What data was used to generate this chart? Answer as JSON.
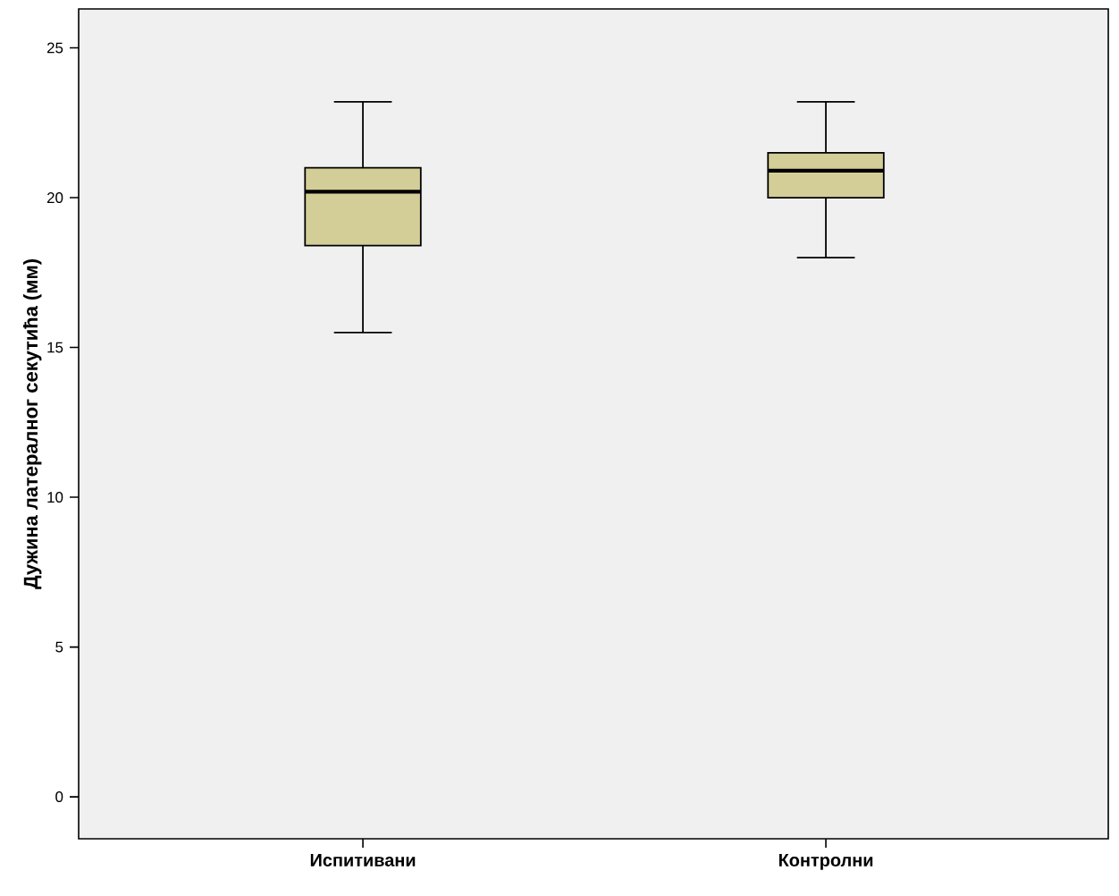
{
  "chart_data": {
    "type": "box",
    "ylabel": "Дужина латералног секутића (мм)",
    "categories": [
      "Испитивани",
      "Контролни"
    ],
    "color": "#d3ce97",
    "boxes": [
      {
        "low": 15.5,
        "q1": 18.4,
        "median": 20.2,
        "q3": 21.0,
        "high": 23.2
      },
      {
        "low": 18.0,
        "q1": 20.0,
        "median": 20.9,
        "q3": 21.5,
        "high": 23.2
      }
    ],
    "ylim": [
      -1.4,
      26.3
    ],
    "yticks": [
      0,
      5,
      10,
      15,
      20,
      25
    ]
  }
}
